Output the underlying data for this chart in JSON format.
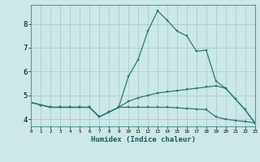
{
  "xlabel": "Humidex (Indice chaleur)",
  "x": [
    0,
    1,
    2,
    3,
    4,
    5,
    6,
    7,
    8,
    9,
    10,
    11,
    12,
    13,
    14,
    15,
    16,
    17,
    18,
    19,
    20,
    21,
    22,
    23
  ],
  "line1": [
    4.7,
    4.6,
    4.5,
    4.5,
    4.5,
    4.5,
    4.5,
    4.1,
    4.3,
    4.5,
    5.8,
    6.5,
    7.7,
    8.55,
    8.15,
    7.7,
    7.5,
    6.85,
    6.9,
    5.6,
    5.3,
    4.85,
    4.4,
    3.85
  ],
  "line2": [
    4.7,
    4.6,
    4.5,
    4.5,
    4.5,
    4.5,
    4.5,
    4.1,
    4.3,
    4.5,
    4.75,
    4.9,
    5.0,
    5.1,
    5.15,
    5.2,
    5.25,
    5.3,
    5.35,
    5.4,
    5.3,
    4.85,
    4.4,
    3.85
  ],
  "line3": [
    4.7,
    4.6,
    4.5,
    4.5,
    4.5,
    4.5,
    4.5,
    4.1,
    4.3,
    4.5,
    4.5,
    4.5,
    4.5,
    4.5,
    4.5,
    4.48,
    4.45,
    4.43,
    4.4,
    4.1,
    4.0,
    3.95,
    3.9,
    3.85
  ],
  "color": "#2a7a70",
  "bg_color": "#cce8e8",
  "grid_color": "#b0d0d0",
  "ylim": [
    3.7,
    8.8
  ],
  "xlim": [
    0,
    23
  ],
  "yticks": [
    4,
    5,
    6,
    7,
    8
  ],
  "xticks": [
    0,
    1,
    2,
    3,
    4,
    5,
    6,
    7,
    8,
    9,
    10,
    11,
    12,
    13,
    14,
    15,
    16,
    17,
    18,
    19,
    20,
    21,
    22,
    23
  ]
}
